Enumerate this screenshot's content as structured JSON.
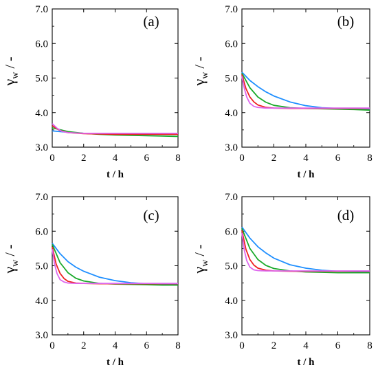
{
  "chart_data": [
    {
      "type": "line",
      "panel_label": "(a)",
      "xlabel": "t / h",
      "ylabel_main": "γ",
      "ylabel_sub": "w",
      "ylabel_tail": " / -",
      "xlim": [
        0,
        8
      ],
      "ylim": [
        3.0,
        7.0
      ],
      "xticks": [
        "0",
        "2",
        "4",
        "6",
        "8"
      ],
      "yticks": [
        "3.0",
        "4.0",
        "5.0",
        "6.0",
        "7.0"
      ],
      "grid": false,
      "series": [
        {
          "color": "#1f8fff",
          "x": [
            0,
            1,
            2,
            3,
            4,
            5,
            6,
            7,
            8
          ],
          "y": [
            3.47,
            3.43,
            3.4,
            3.38,
            3.37,
            3.37,
            3.37,
            3.37,
            3.37
          ]
        },
        {
          "color": "#1aaa2a",
          "x": [
            0,
            1,
            2,
            3,
            4,
            5,
            6,
            7,
            8
          ],
          "y": [
            3.56,
            3.45,
            3.4,
            3.37,
            3.35,
            3.34,
            3.33,
            3.32,
            3.31
          ]
        },
        {
          "color": "#ee2222",
          "x": [
            0,
            0.5,
            1,
            2,
            3,
            4,
            6,
            8
          ],
          "y": [
            3.62,
            3.48,
            3.42,
            3.39,
            3.38,
            3.37,
            3.37,
            3.37
          ]
        },
        {
          "color": "#dd66ee",
          "x": [
            0,
            0.3,
            0.6,
            1,
            2,
            4,
            6,
            8
          ],
          "y": [
            3.68,
            3.55,
            3.46,
            3.42,
            3.4,
            3.4,
            3.4,
            3.4
          ]
        }
      ]
    },
    {
      "type": "line",
      "panel_label": "(b)",
      "xlabel": "t / h",
      "ylabel_main": "γ",
      "ylabel_sub": "w",
      "ylabel_tail": " / -",
      "xlim": [
        0,
        8
      ],
      "ylim": [
        3.0,
        7.0
      ],
      "xticks": [
        "0",
        "2",
        "4",
        "6",
        "8"
      ],
      "yticks": [
        "3.0",
        "4.0",
        "5.0",
        "6.0",
        "7.0"
      ],
      "grid": false,
      "series": [
        {
          "color": "#1f8fff",
          "x": [
            0,
            0.5,
            1,
            1.5,
            2,
            3,
            4,
            5,
            6,
            7,
            8
          ],
          "y": [
            5.17,
            4.93,
            4.75,
            4.6,
            4.48,
            4.31,
            4.2,
            4.14,
            4.12,
            4.11,
            4.1
          ]
        },
        {
          "color": "#1aaa2a",
          "x": [
            0,
            0.5,
            1,
            1.5,
            2,
            3,
            4,
            5,
            6,
            7,
            8
          ],
          "y": [
            5.14,
            4.72,
            4.45,
            4.3,
            4.21,
            4.14,
            4.12,
            4.11,
            4.1,
            4.09,
            4.07
          ]
        },
        {
          "color": "#ee2222",
          "x": [
            0,
            0.25,
            0.5,
            0.75,
            1,
            1.5,
            2,
            3,
            4,
            6,
            8
          ],
          "y": [
            5.1,
            4.7,
            4.45,
            4.31,
            4.22,
            4.15,
            4.13,
            4.12,
            4.12,
            4.12,
            4.12
          ]
        },
        {
          "color": "#dd66ee",
          "x": [
            0,
            0.15,
            0.3,
            0.5,
            0.75,
            1,
            1.5,
            2,
            4,
            6,
            8
          ],
          "y": [
            5.05,
            4.7,
            4.45,
            4.27,
            4.18,
            4.15,
            4.13,
            4.13,
            4.13,
            4.13,
            4.13
          ]
        }
      ]
    },
    {
      "type": "line",
      "panel_label": "(c)",
      "xlabel": "t / h",
      "ylabel_main": "γ",
      "ylabel_sub": "w",
      "ylabel_tail": " / -",
      "xlim": [
        0,
        8
      ],
      "ylim": [
        3.0,
        7.0
      ],
      "xticks": [
        "0",
        "2",
        "4",
        "6",
        "8"
      ],
      "yticks": [
        "3.0",
        "4.0",
        "5.0",
        "6.0",
        "7.0"
      ],
      "grid": false,
      "series": [
        {
          "color": "#1f8fff",
          "x": [
            0,
            0.5,
            1,
            1.5,
            2,
            3,
            4,
            5,
            6,
            7,
            8
          ],
          "y": [
            5.65,
            5.35,
            5.12,
            4.96,
            4.84,
            4.67,
            4.57,
            4.51,
            4.48,
            4.47,
            4.47
          ]
        },
        {
          "color": "#1aaa2a",
          "x": [
            0,
            0.5,
            1,
            1.5,
            2,
            3,
            4,
            5,
            6,
            7,
            8
          ],
          "y": [
            5.62,
            5.09,
            4.8,
            4.64,
            4.56,
            4.49,
            4.47,
            4.46,
            4.45,
            4.44,
            4.44
          ]
        },
        {
          "color": "#ee2222",
          "x": [
            0,
            0.25,
            0.5,
            0.75,
            1,
            1.5,
            2,
            3,
            4,
            6,
            8
          ],
          "y": [
            5.55,
            5.05,
            4.78,
            4.63,
            4.55,
            4.5,
            4.49,
            4.48,
            4.48,
            4.48,
            4.48
          ]
        },
        {
          "color": "#dd66ee",
          "x": [
            0,
            0.15,
            0.3,
            0.5,
            0.75,
            1,
            1.5,
            2,
            4,
            6,
            8
          ],
          "y": [
            5.48,
            5.05,
            4.78,
            4.6,
            4.53,
            4.5,
            4.49,
            4.49,
            4.49,
            4.49,
            4.49
          ]
        }
      ]
    },
    {
      "type": "line",
      "panel_label": "(d)",
      "xlabel": "t / h",
      "ylabel_main": "γ",
      "ylabel_sub": "w",
      "ylabel_tail": " / -",
      "xlim": [
        0,
        8
      ],
      "ylim": [
        3.0,
        7.0
      ],
      "xticks": [
        "0",
        "2",
        "4",
        "6",
        "8"
      ],
      "yticks": [
        "3.0",
        "4.0",
        "5.0",
        "6.0",
        "7.0"
      ],
      "grid": false,
      "series": [
        {
          "color": "#1f8fff",
          "x": [
            0,
            0.5,
            1,
            1.5,
            2,
            3,
            4,
            5,
            6,
            7,
            8
          ],
          "y": [
            6.12,
            5.8,
            5.55,
            5.37,
            5.22,
            5.03,
            4.93,
            4.87,
            4.84,
            4.83,
            4.82
          ]
        },
        {
          "color": "#1aaa2a",
          "x": [
            0,
            0.5,
            1,
            1.5,
            2,
            3,
            4,
            5,
            6,
            7,
            8
          ],
          "y": [
            6.08,
            5.5,
            5.18,
            5.01,
            4.92,
            4.85,
            4.82,
            4.81,
            4.8,
            4.8,
            4.8
          ]
        },
        {
          "color": "#ee2222",
          "x": [
            0,
            0.25,
            0.5,
            0.75,
            1,
            1.5,
            2,
            3,
            4,
            6,
            8
          ],
          "y": [
            6.02,
            5.48,
            5.18,
            5.02,
            4.93,
            4.87,
            4.85,
            4.84,
            4.84,
            4.84,
            4.84
          ]
        },
        {
          "color": "#dd66ee",
          "x": [
            0,
            0.15,
            0.3,
            0.5,
            0.75,
            1,
            1.5,
            2,
            4,
            6,
            8
          ],
          "y": [
            5.95,
            5.45,
            5.15,
            4.96,
            4.88,
            4.86,
            4.85,
            4.85,
            4.85,
            4.85,
            4.85
          ]
        }
      ]
    }
  ]
}
